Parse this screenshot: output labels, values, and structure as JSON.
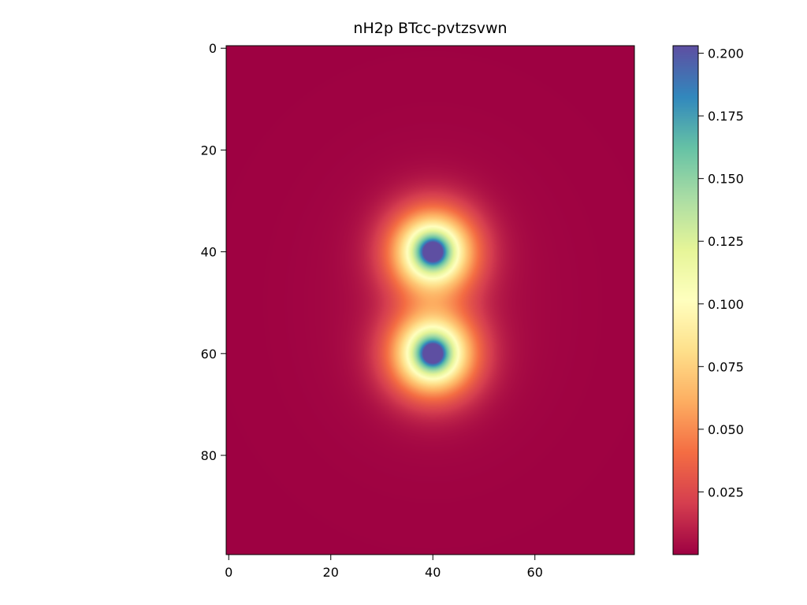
{
  "chart_data": {
    "type": "heatmap",
    "title": "nH2p BTcc-pvtzsvwn",
    "xlabel": "",
    "ylabel": "",
    "grid": false,
    "x_range": [
      0,
      80
    ],
    "y_range": [
      0,
      100
    ],
    "y_inverted": true,
    "x_ticks": [
      {
        "value": 0,
        "label": "0"
      },
      {
        "value": 20,
        "label": "20"
      },
      {
        "value": 40,
        "label": "40"
      },
      {
        "value": 60,
        "label": "60"
      }
    ],
    "y_ticks": [
      {
        "value": 0,
        "label": "0"
      },
      {
        "value": 20,
        "label": "20"
      },
      {
        "value": 40,
        "label": "40"
      },
      {
        "value": 60,
        "label": "60"
      },
      {
        "value": 80,
        "label": "80"
      }
    ],
    "colormap": "Spectral",
    "colorbar": {
      "min": 0.0,
      "max": 0.203,
      "placement": "right",
      "ticks": [
        {
          "value": 0.025,
          "label": "0.025"
        },
        {
          "value": 0.05,
          "label": "0.050"
        },
        {
          "value": 0.075,
          "label": "0.075"
        },
        {
          "value": 0.1,
          "label": "0.100"
        },
        {
          "value": 0.125,
          "label": "0.125"
        },
        {
          "value": 0.15,
          "label": "0.150"
        },
        {
          "value": 0.175,
          "label": "0.175"
        },
        {
          "value": 0.2,
          "label": "0.200"
        }
      ]
    },
    "peaks": [
      {
        "x": 40,
        "y": 40,
        "value": 0.19
      },
      {
        "x": 40,
        "y": 60,
        "value": 0.19
      }
    ],
    "background_value": 0.0
  }
}
